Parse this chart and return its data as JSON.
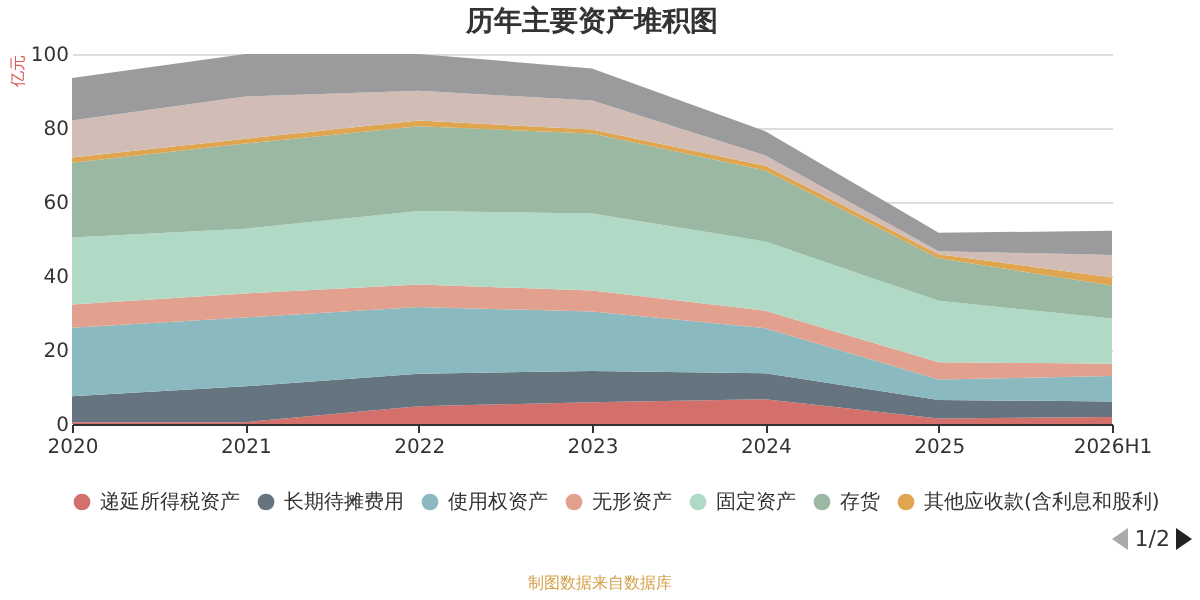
{
  "chart_data": {
    "type": "area",
    "title": "历年主要资产堆积图",
    "ylabel": "亿元",
    "stacked": true,
    "grid": "y",
    "legend": "bottom",
    "marker": "none",
    "categories": [
      "2020",
      "2021",
      "2022",
      "2023",
      "2024",
      "2025",
      "2026H1"
    ],
    "ylim": [
      0,
      100
    ],
    "yticks": [
      0,
      20,
      40,
      60,
      80,
      100
    ],
    "series": [
      {
        "name": "递延所得税资产",
        "color": "#d4706c",
        "values": [
          0.5,
          0.5,
          4.8,
          5.9,
          6.7,
          1.5,
          1.9
        ]
      },
      {
        "name": "长期待摊费用",
        "color": "#66747f",
        "values": [
          7.0,
          9.7,
          8.8,
          8.4,
          7.0,
          5.0,
          4.2
        ]
      },
      {
        "name": "使用权资产",
        "color": "#8ab9c0",
        "values": [
          18.5,
          18.6,
          18.0,
          16.1,
          12.2,
          5.5,
          6.9
        ]
      },
      {
        "name": "无形资产",
        "color": "#e2a08e",
        "values": [
          6.3,
          6.5,
          6.1,
          5.7,
          4.7,
          4.7,
          3.3
        ]
      },
      {
        "name": "固定资产",
        "color": "#b0d9c6",
        "values": [
          18.1,
          17.5,
          19.9,
          20.8,
          18.7,
          16.6,
          12.2
        ]
      },
      {
        "name": "存货",
        "color": "#9ab8a2",
        "values": [
          20.2,
          23.0,
          22.9,
          21.6,
          19.2,
          11.5,
          8.9
        ]
      },
      {
        "name": "其他应收款(含利息和股利)",
        "color": "#e0a54f",
        "values": [
          1.4,
          1.3,
          1.5,
          1.1,
          1.3,
          1.1,
          2.2
        ]
      },
      {
        "color": "#d1bdb6",
        "values": [
          10.0,
          11.4,
          8.1,
          7.8,
          2.8,
          0.8,
          6.1
        ]
      },
      {
        "color": "#9b9b9d",
        "values": [
          11.5,
          11.5,
          9.9,
          8.7,
          6.5,
          5.0,
          6.5
        ]
      }
    ],
    "annotations": [
      "1/2",
      "制图数据来自数据库"
    ]
  }
}
